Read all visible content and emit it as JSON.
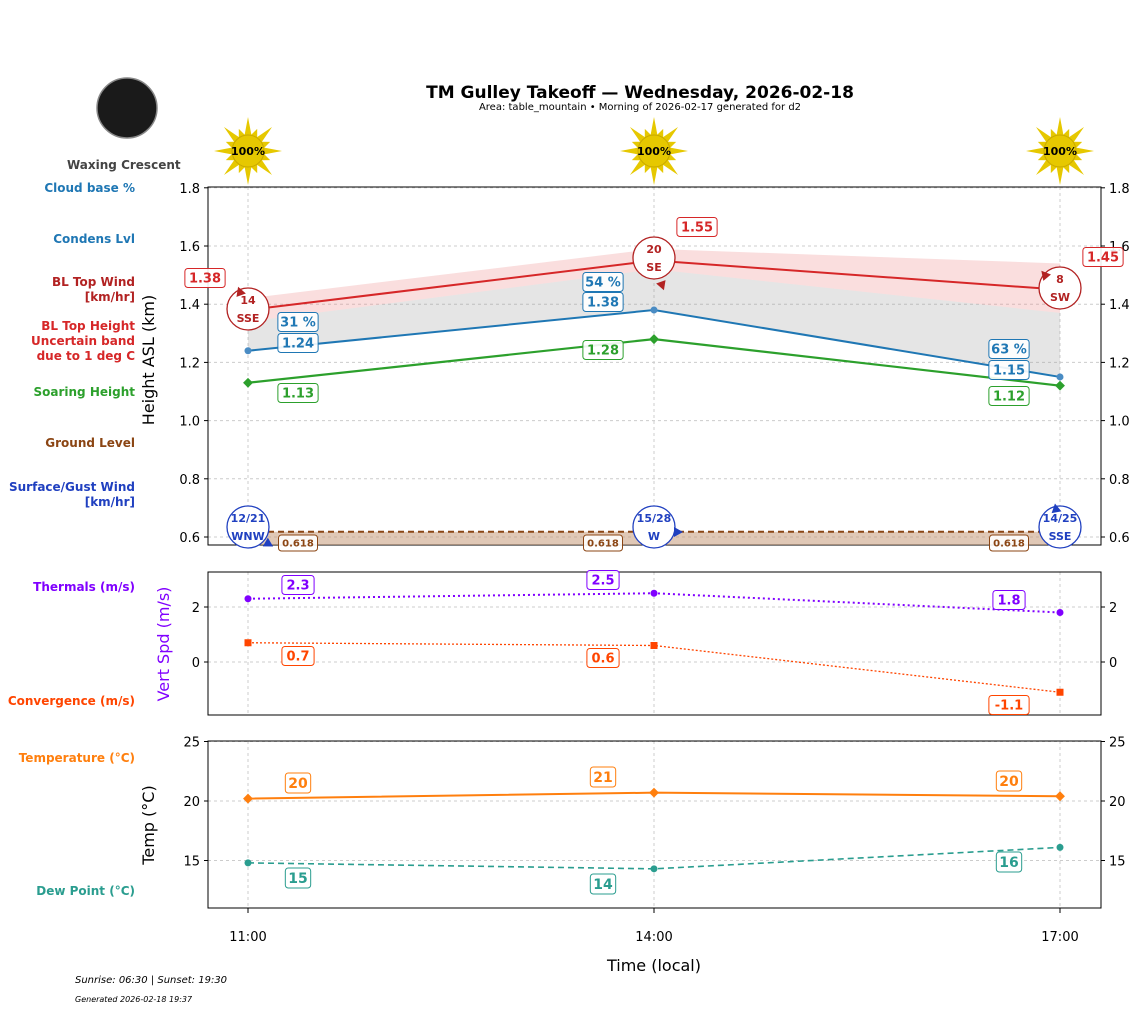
{
  "header": {
    "title": "TM Gulley Takeoff — Wednesday, 2026-02-18",
    "subtitle": "Area: table_mountain • Morning of 2026-02-17 generated for d2",
    "moon_phase": "Waxing Crescent"
  },
  "footer": {
    "sun_times": "Sunrise: 06:30 | Sunset: 19:30",
    "generated": "Generated 2026-02-18 19:37"
  },
  "row_labels": [
    {
      "text": "Cloud base %",
      "color": "#1f77b4"
    },
    {
      "text": "Condens Lvl",
      "color": "#1f77b4"
    },
    {
      "text": "BL Top Wind\n[km/hr]",
      "color": "#b22222"
    },
    {
      "text": "BL Top Height\nUncertain band\ndue to 1 deg C",
      "color": "#d62728"
    },
    {
      "text": "Soaring Height",
      "color": "#2ca02c"
    },
    {
      "text": "Ground Level",
      "color": "#8b4513"
    },
    {
      "text": "Surface/Gust Wind\n[km/hr]",
      "color": "#2040c0"
    },
    {
      "text": "Thermals (m/s)",
      "color": "#8000ff"
    },
    {
      "text": "Convergence (m/s)",
      "color": "#ff4500"
    },
    {
      "text": "Temperature (°C)",
      "color": "#ff7f0e"
    },
    {
      "text": "Dew Point (°C)",
      "color": "#2a9d8f"
    }
  ],
  "chart_data": [
    {
      "type": "line",
      "ylabel": "Height ASL (km)",
      "ylim": [
        0.57,
        1.8
      ],
      "yticks": [
        "0.6",
        "0.8",
        "1.0",
        "1.2",
        "1.4",
        "1.6",
        "1.8"
      ],
      "categories": [
        "11:00",
        "14:00",
        "17:00"
      ],
      "grid": true,
      "sun_cover": [
        "100%",
        "100%",
        "100%"
      ],
      "series": [
        {
          "name": "BL Top Height",
          "values": [
            1.38,
            1.55,
            1.45
          ],
          "labels": [
            "1.38",
            "1.55",
            "1.45"
          ],
          "band_upper": [
            1.42,
            1.59,
            1.54
          ],
          "band_lower": [
            1.34,
            1.52,
            1.37
          ],
          "color": "#d62728"
        },
        {
          "name": "Condens Lvl",
          "values": [
            1.24,
            1.38,
            1.15
          ],
          "labels": [
            "1.24",
            "1.38",
            "1.15"
          ],
          "color": "#1f77b4"
        },
        {
          "name": "Cloud base %",
          "values": [
            31,
            54,
            63
          ],
          "labels": [
            "31 %",
            "54 %",
            "63 %"
          ],
          "color": "#1f77b4"
        },
        {
          "name": "Soaring Height",
          "values": [
            1.13,
            1.28,
            1.12
          ],
          "labels": [
            "1.13",
            "1.28",
            "1.12"
          ],
          "color": "#2ca02c"
        },
        {
          "name": "Ground Level",
          "values": [
            0.618,
            0.618,
            0.618
          ],
          "labels": [
            "0.618",
            "0.618",
            "0.618"
          ],
          "color": "#8b4513"
        }
      ],
      "bl_top_wind": [
        {
          "speed": "14",
          "dir": "SSE"
        },
        {
          "speed": "20",
          "dir": "SE"
        },
        {
          "speed": "8",
          "dir": "SW"
        }
      ],
      "surface_wind": [
        {
          "speed": "12/21",
          "dir": "WNW"
        },
        {
          "speed": "15/28",
          "dir": "W"
        },
        {
          "speed": "14/25",
          "dir": "SSE"
        }
      ]
    },
    {
      "type": "line",
      "ylabel": "Vert Spd (m/s)",
      "ylim": [
        -1.93,
        3.27
      ],
      "yticks": [
        "0",
        "2"
      ],
      "categories": [
        "11:00",
        "14:00",
        "17:00"
      ],
      "grid": true,
      "series": [
        {
          "name": "Thermals (m/s)",
          "values": [
            2.3,
            2.5,
            1.8
          ],
          "labels": [
            "2.3",
            "2.5",
            "1.8"
          ],
          "color": "#8000ff"
        },
        {
          "name": "Convergence (m/s)",
          "values": [
            0.7,
            0.6,
            -1.1
          ],
          "labels": [
            "0.7",
            "0.6",
            "-1.1"
          ],
          "color": "#ff4500"
        }
      ]
    },
    {
      "type": "line",
      "ylabel": "Temp (°C)",
      "xlabel": "Time (local)",
      "ylim": [
        11,
        25
      ],
      "yticks": [
        "15",
        "20",
        "25"
      ],
      "categories": [
        "11:00",
        "14:00",
        "17:00"
      ],
      "grid": true,
      "series": [
        {
          "name": "Temperature (°C)",
          "values": [
            20.2,
            20.7,
            20.4
          ],
          "labels": [
            "20",
            "21",
            "20"
          ],
          "color": "#ff7f0e"
        },
        {
          "name": "Dew Point (°C)",
          "values": [
            14.8,
            14.3,
            16.1
          ],
          "labels": [
            "15",
            "14",
            "16"
          ],
          "color": "#2a9d8f"
        }
      ]
    }
  ]
}
